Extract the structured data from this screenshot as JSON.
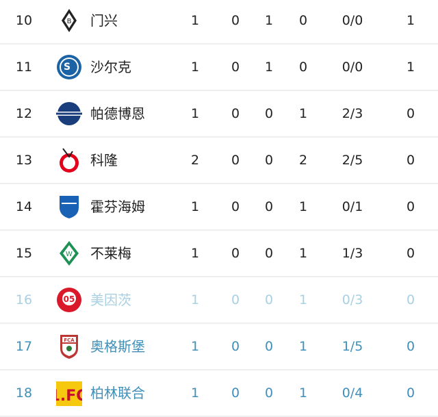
{
  "rows": [
    {
      "rank": "10",
      "team": "门兴",
      "logo": "gladbach-logo-icon",
      "stats": [
        "1",
        "0",
        "1",
        "0",
        "0/0",
        "1"
      ],
      "status": "normal"
    },
    {
      "rank": "11",
      "team": "沙尔克",
      "logo": "schalke-logo-icon",
      "stats": [
        "1",
        "0",
        "1",
        "0",
        "0/0",
        "1"
      ],
      "status": "normal"
    },
    {
      "rank": "12",
      "team": "帕德博恩",
      "logo": "paderborn-logo-icon",
      "stats": [
        "1",
        "0",
        "0",
        "1",
        "2/3",
        "0"
      ],
      "status": "normal"
    },
    {
      "rank": "13",
      "team": "科隆",
      "logo": "koln-logo-icon",
      "stats": [
        "2",
        "0",
        "0",
        "2",
        "2/5",
        "0"
      ],
      "status": "normal"
    },
    {
      "rank": "14",
      "team": "霍芬海姆",
      "logo": "hoffenheim-logo-icon",
      "stats": [
        "1",
        "0",
        "0",
        "1",
        "0/1",
        "0"
      ],
      "status": "normal"
    },
    {
      "rank": "15",
      "team": "不莱梅",
      "logo": "bremen-logo-icon",
      "stats": [
        "1",
        "0",
        "0",
        "1",
        "1/3",
        "0"
      ],
      "status": "normal"
    },
    {
      "rank": "16",
      "team": "美因茨",
      "logo": "mainz-logo-icon",
      "stats": [
        "1",
        "0",
        "0",
        "1",
        "0/3",
        "0"
      ],
      "status": "playoff"
    },
    {
      "rank": "17",
      "team": "奥格斯堡",
      "logo": "augsburg-logo-icon",
      "stats": [
        "1",
        "0",
        "0",
        "1",
        "1/5",
        "0"
      ],
      "status": "relegation"
    },
    {
      "rank": "18",
      "team": "柏林联合",
      "logo": "union-berlin-logo-icon",
      "stats": [
        "1",
        "0",
        "0",
        "1",
        "0/4",
        "0"
      ],
      "status": "relegation"
    }
  ],
  "colors": {
    "playoff": "#a9d0e2",
    "relegation": "#3f8fb8",
    "text": "#222222"
  }
}
